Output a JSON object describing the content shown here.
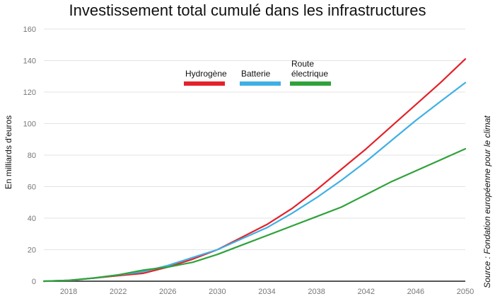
{
  "chart_data": {
    "type": "line",
    "title": "Investissement total cumulé dans les infrastructures",
    "ylabel": "En milliards d'euros",
    "xlabel": "",
    "source": "Source : Fondation européenne pour le climat",
    "ylim": [
      0,
      160
    ],
    "xlim": [
      2016,
      2050
    ],
    "yticks": [
      "0",
      "20",
      "40",
      "60",
      "80",
      "100",
      "120",
      "140",
      "160"
    ],
    "xticks": [
      "2018",
      "2022",
      "2026",
      "2030",
      "2034",
      "2038",
      "2042",
      "2046",
      "2050"
    ],
    "grid": true,
    "legend_position": "top-center",
    "x": [
      2016,
      2018,
      2020,
      2022,
      2024,
      2026,
      2028,
      2030,
      2032,
      2034,
      2036,
      2038,
      2040,
      2042,
      2044,
      2046,
      2048,
      2050
    ],
    "series": [
      {
        "name": "Hydrogène",
        "color": "#e3222a",
        "values": [
          0,
          0.5,
          2,
          3.5,
          5,
          9,
          14,
          20,
          28,
          36,
          46,
          58,
          71,
          84,
          98,
          112,
          126,
          141
        ]
      },
      {
        "name": "Batterie",
        "color": "#3fb0e4",
        "values": [
          0,
          0.5,
          2,
          4,
          6,
          10,
          15,
          20,
          27,
          34,
          43,
          53,
          64,
          76,
          89,
          102,
          114,
          126
        ]
      },
      {
        "name": "Route électrique",
        "name_lines": [
          "Route",
          "électrique"
        ],
        "color": "#2fa23a",
        "values": [
          0,
          0.5,
          2,
          4,
          7,
          9,
          12,
          17,
          23,
          29,
          35,
          41,
          47,
          55,
          63,
          70,
          77,
          84
        ]
      }
    ]
  }
}
